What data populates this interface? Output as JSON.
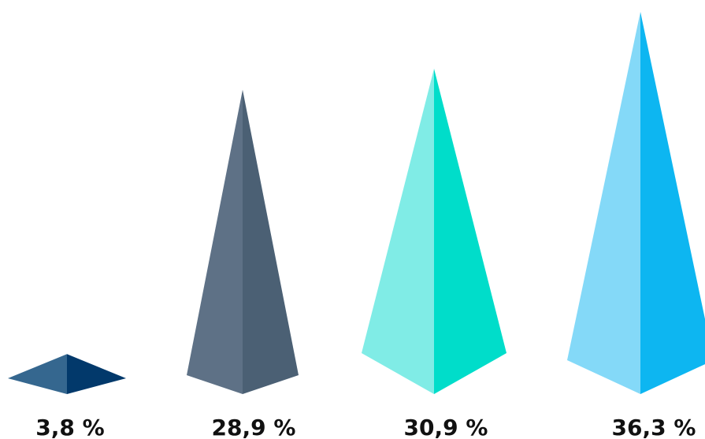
{
  "chart_data": {
    "type": "bar",
    "title": "",
    "xlabel": "",
    "ylabel": "",
    "ylim": [
      0,
      36.3
    ],
    "grid": false,
    "legend": "none",
    "values": [
      3.8,
      28.9,
      30.9,
      36.3
    ],
    "labels": [
      "3,8 %",
      "28,9 %",
      "30,9 %",
      "36,3 %"
    ],
    "colors": [
      {
        "light": "#35678f",
        "dark": "#02396b"
      },
      {
        "light": "#5e7186",
        "dark": "#4b6074"
      },
      {
        "light": "#80ece6",
        "dark": "#00ddca"
      },
      {
        "light": "#84d9f8",
        "dark": "#0db6f1"
      }
    ]
  }
}
